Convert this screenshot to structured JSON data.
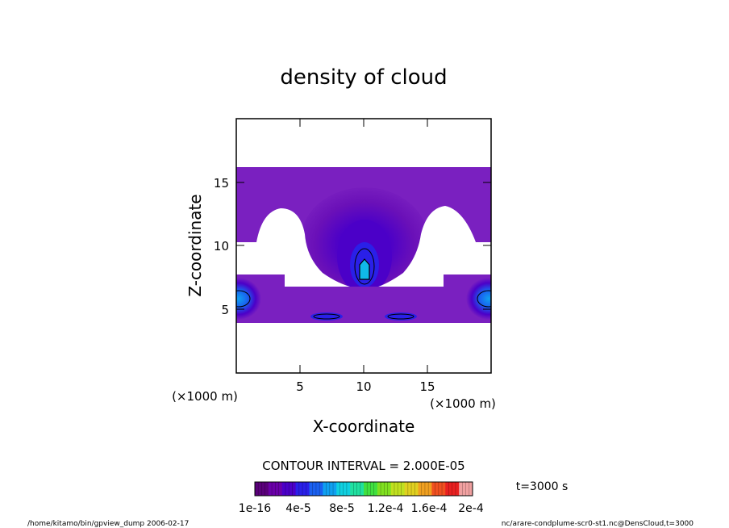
{
  "chart_data": {
    "type": "heatmap",
    "title": "density of cloud",
    "xlabel": "X-coordinate",
    "ylabel": "Z-coordinate",
    "x_unit": "(×1000 m)",
    "y_unit": "(×1000 m)",
    "xlim": [
      0,
      20
    ],
    "ylim": [
      0,
      20
    ],
    "x_ticks": [
      "5",
      "10",
      "15"
    ],
    "y_ticks": [
      "5",
      "10",
      "15"
    ],
    "contour_interval": "CONTOUR INTERVAL = 2.000E-05",
    "time_label": "t=3000 s",
    "colorbar": {
      "labels": [
        "1e-16",
        "4e-5",
        "8e-5",
        "1.2e-4",
        "1.6e-4",
        "2e-4"
      ],
      "colors": [
        "#5a007a",
        "#6a00a8",
        "#4b00c8",
        "#2a20e8",
        "#1a60f0",
        "#10a0f0",
        "#10d0e0",
        "#20e0a0",
        "#40e040",
        "#80e020",
        "#c0e020",
        "#e0d020",
        "#f0a020",
        "#f05020",
        "#e82020",
        "#f0a0a0"
      ]
    },
    "features": [
      {
        "name": "cloud layer",
        "x_range": [
          0,
          20
        ],
        "z_range": [
          4,
          16
        ],
        "level": "low"
      },
      {
        "name": "central plume core",
        "x": 10,
        "z": 8,
        "level": "max"
      },
      {
        "name": "left edge vortex",
        "x": 0.5,
        "z": 5.5,
        "level": "high"
      },
      {
        "name": "right edge vortex",
        "x": 19.5,
        "z": 5.5,
        "level": "high"
      }
    ]
  },
  "footer": {
    "left": "/home/kitamo/bin/gpview_dump  2006-02-17",
    "right": "nc/arare-condplume-scr0-st1.nc@DensCloud,t=3000"
  }
}
